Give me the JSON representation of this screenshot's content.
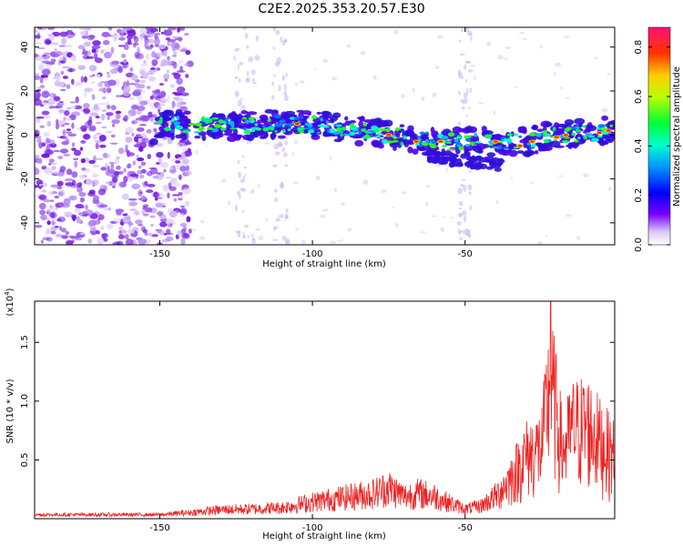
{
  "title": "C2E2.2025.353.20.57.E30",
  "chart_data": [
    {
      "type": "heatmap",
      "title": "C2E2.2025.353.20.57.E30",
      "xlabel": "Height of straight line (km)",
      "ylabel": "Frequency (Hz)",
      "xlim": [
        -191,
        -1
      ],
      "ylim": [
        -50,
        49
      ],
      "xticks": [
        -150,
        -100,
        -50
      ],
      "yticks": [
        40,
        20,
        0,
        -20,
        -40
      ],
      "colorbar": {
        "label": "Normalized spectral amplitude",
        "range": [
          0.0,
          0.88
        ],
        "ticks": [
          0.0,
          0.2,
          0.4,
          0.6,
          0.8
        ]
      },
      "ridge_center_hz": [
        {
          "x": -150,
          "y": 5
        },
        {
          "x": -130,
          "y": 4
        },
        {
          "x": -110,
          "y": 5
        },
        {
          "x": -100,
          "y": 5
        },
        {
          "x": -90,
          "y": 3
        },
        {
          "x": -80,
          "y": 1
        },
        {
          "x": -70,
          "y": -1
        },
        {
          "x": -60,
          "y": -3
        },
        {
          "x": -50,
          "y": -3
        },
        {
          "x": -40,
          "y": -3
        },
        {
          "x": -30,
          "y": -3
        },
        {
          "x": -20,
          "y": 0
        },
        {
          "x": -10,
          "y": 1
        },
        {
          "x": -1,
          "y": 2
        }
      ]
    },
    {
      "type": "line",
      "xlabel": "Height of straight line (km)",
      "ylabel": "SNR (10 * v/v)",
      "yscale_label": "(x10",
      "yscale_exp": "4",
      "xlim": [
        -191,
        -1
      ],
      "ylim": [
        0,
        1.85
      ],
      "xticks": [
        -150,
        -100,
        -50
      ],
      "yticks": [
        0.5,
        1.0,
        1.5
      ],
      "ytick_labels": [
        "0.5",
        "1.0",
        "1.5"
      ],
      "series": [
        {
          "name": "SNR",
          "color": "#ee2222",
          "envelope": [
            {
              "x": -191,
              "y": 0.04
            },
            {
              "x": -170,
              "y": 0.04
            },
            {
              "x": -150,
              "y": 0.04
            },
            {
              "x": -140,
              "y": 0.07
            },
            {
              "x": -130,
              "y": 0.11
            },
            {
              "x": -120,
              "y": 0.12
            },
            {
              "x": -110,
              "y": 0.14
            },
            {
              "x": -100,
              "y": 0.22
            },
            {
              "x": -90,
              "y": 0.28
            },
            {
              "x": -80,
              "y": 0.34
            },
            {
              "x": -75,
              "y": 0.42
            },
            {
              "x": -70,
              "y": 0.3
            },
            {
              "x": -65,
              "y": 0.34
            },
            {
              "x": -60,
              "y": 0.3
            },
            {
              "x": -55,
              "y": 0.2
            },
            {
              "x": -50,
              "y": 0.12
            },
            {
              "x": -45,
              "y": 0.16
            },
            {
              "x": -40,
              "y": 0.3
            },
            {
              "x": -35,
              "y": 0.55
            },
            {
              "x": -30,
              "y": 0.85
            },
            {
              "x": -25,
              "y": 0.95
            },
            {
              "x": -22,
              "y": 1.85
            },
            {
              "x": -18,
              "y": 0.9
            },
            {
              "x": -15,
              "y": 1.2
            },
            {
              "x": -10,
              "y": 1.25
            },
            {
              "x": -5,
              "y": 1.0
            },
            {
              "x": -1,
              "y": 0.85
            }
          ]
        }
      ]
    }
  ]
}
